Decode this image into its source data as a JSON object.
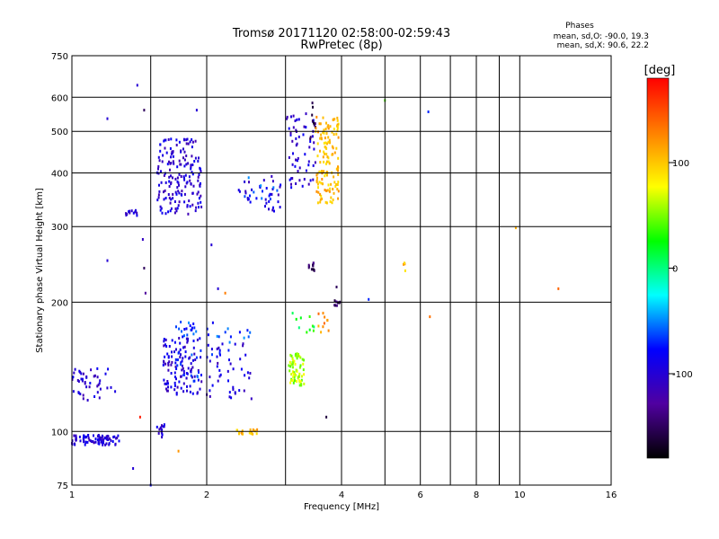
{
  "chart_data": {
    "type": "scatter",
    "title": "Tromsø 20171120 02:58:00-02:59:43",
    "subtitle": "RwPretec (8p)",
    "xlabel": "Frequency [MHz]",
    "ylabel": "Stationary phase Virtual Height [km]",
    "xscale": "log",
    "yscale": "log",
    "xlim": [
      1,
      16
    ],
    "ylim": [
      75,
      750
    ],
    "xticks": [
      1,
      2,
      4,
      6,
      8,
      10,
      16
    ],
    "xtick_labels": [
      "1",
      "2",
      "4",
      "6",
      "8",
      "10",
      "16"
    ],
    "yticks": [
      75,
      100,
      200,
      300,
      400,
      500,
      600,
      750
    ],
    "ytick_labels": [
      "75",
      "100",
      "200",
      "300",
      "400",
      "500",
      "600",
      "750"
    ],
    "x_gridlines": [
      1.5,
      2,
      3,
      4,
      5,
      6,
      7,
      8,
      9,
      10
    ],
    "y_gridlines": [
      100,
      200,
      300,
      400,
      500,
      600
    ],
    "grid": true,
    "legend_title": "Phases",
    "legend_lines": [
      "mean, sd,O: -90.0, 19.3",
      "mean, sd,X:  90.6, 22.2"
    ],
    "legend_placement": "top-right",
    "colorbar": {
      "label": "[deg]",
      "range": [
        -180,
        180
      ],
      "ticks": [
        100,
        0,
        -100
      ],
      "tick_labels": [
        "100",
        "0",
        "-100"
      ],
      "colors": [
        "#ff0000",
        "#ff8000",
        "#ffff00",
        "#00ff00",
        "#00ffff",
        "#0000ff",
        "#5000a0",
        "#000000"
      ]
    },
    "series": [
      {
        "phase_deg": -100,
        "clusters": [
          {
            "fmin": 1.0,
            "fmax": 1.28,
            "hmin": 93,
            "hmax": 98,
            "n": 90
          },
          {
            "fmin": 1.0,
            "fmax": 1.25,
            "hmin": 118,
            "hmax": 140,
            "n": 45
          },
          {
            "fmin": 1.55,
            "fmax": 1.95,
            "hmin": 320,
            "hmax": 480,
            "n": 170
          },
          {
            "fmin": 1.3,
            "fmax": 1.4,
            "hmin": 318,
            "hmax": 328,
            "n": 12
          },
          {
            "fmin": 1.6,
            "fmax": 1.95,
            "hmin": 122,
            "hmax": 165,
            "n": 110
          },
          {
            "fmin": 2.0,
            "fmax": 2.55,
            "hmin": 118,
            "hmax": 160,
            "n": 45
          },
          {
            "fmin": 2.35,
            "fmax": 3.1,
            "hmin": 325,
            "hmax": 400,
            "n": 35
          },
          {
            "fmin": 3.0,
            "fmax": 3.5,
            "hmin": 360,
            "hmax": 550,
            "n": 55
          },
          {
            "fmin": 1.55,
            "fmax": 1.62,
            "hmin": 96,
            "hmax": 104,
            "n": 14
          }
        ]
      },
      {
        "phase_deg": -65,
        "clusters": [
          {
            "fmin": 1.7,
            "fmax": 1.9,
            "hmin": 165,
            "hmax": 180,
            "n": 18
          },
          {
            "fmin": 2.0,
            "fmax": 2.6,
            "hmin": 150,
            "hmax": 182,
            "n": 18
          },
          {
            "fmin": 1.7,
            "fmax": 1.95,
            "hmin": 130,
            "hmax": 155,
            "n": 20
          },
          {
            "fmin": 2.4,
            "fmax": 2.9,
            "hmin": 345,
            "hmax": 390,
            "n": 12
          }
        ]
      },
      {
        "phase_deg": -150,
        "clusters": [
          {
            "fmin": 3.38,
            "fmax": 3.48,
            "hmin": 235,
            "hmax": 250,
            "n": 12
          },
          {
            "fmin": 3.85,
            "fmax": 3.98,
            "hmin": 196,
            "hmax": 202,
            "n": 8
          },
          {
            "fmin": 3.4,
            "fmax": 3.5,
            "hmin": 480,
            "hmax": 600,
            "n": 10
          }
        ]
      },
      {
        "phase_deg": 60,
        "clusters": [
          {
            "fmin": 3.05,
            "fmax": 3.3,
            "hmin": 128,
            "hmax": 152,
            "n": 70
          }
        ]
      },
      {
        "phase_deg": 105,
        "clusters": [
          {
            "fmin": 3.5,
            "fmax": 3.95,
            "hmin": 340,
            "hmax": 540,
            "n": 130
          },
          {
            "fmin": 2.3,
            "fmax": 2.6,
            "hmin": 98,
            "hmax": 101,
            "n": 18
          },
          {
            "fmin": 5.5,
            "fmax": 5.55,
            "hmin": 236,
            "hmax": 250,
            "n": 4
          }
        ]
      },
      {
        "phase_deg": 125,
        "clusters": [
          {
            "fmin": 3.55,
            "fmax": 3.75,
            "hmin": 170,
            "hmax": 190,
            "n": 10
          }
        ]
      },
      {
        "phase_deg": 20,
        "clusters": [
          {
            "fmin": 3.1,
            "fmax": 3.5,
            "hmin": 170,
            "hmax": 190,
            "n": 10
          }
        ]
      }
    ],
    "isolated_points": [
      {
        "f": 1.4,
        "h": 640,
        "phase_deg": -100
      },
      {
        "f": 1.2,
        "h": 535,
        "phase_deg": -100
      },
      {
        "f": 1.45,
        "h": 560,
        "phase_deg": -150
      },
      {
        "f": 1.9,
        "h": 560,
        "phase_deg": -100
      },
      {
        "f": 1.2,
        "h": 250,
        "phase_deg": -100
      },
      {
        "f": 1.46,
        "h": 210,
        "phase_deg": -130
      },
      {
        "f": 1.45,
        "h": 240,
        "phase_deg": -150
      },
      {
        "f": 1.44,
        "h": 280,
        "phase_deg": -110
      },
      {
        "f": 2.05,
        "h": 272,
        "phase_deg": -100
      },
      {
        "f": 2.12,
        "h": 215,
        "phase_deg": -100
      },
      {
        "f": 4.6,
        "h": 203,
        "phase_deg": -70
      },
      {
        "f": 5.0,
        "h": 590,
        "phase_deg": 40
      },
      {
        "f": 6.25,
        "h": 555,
        "phase_deg": -70
      },
      {
        "f": 6.3,
        "h": 185,
        "phase_deg": 135
      },
      {
        "f": 9.8,
        "h": 298,
        "phase_deg": 110
      },
      {
        "f": 12.2,
        "h": 215,
        "phase_deg": 140
      },
      {
        "f": 1.42,
        "h": 108,
        "phase_deg": 170
      },
      {
        "f": 1.73,
        "h": 90,
        "phase_deg": 120
      },
      {
        "f": 1.37,
        "h": 82,
        "phase_deg": -100
      },
      {
        "f": 1.5,
        "h": 75,
        "phase_deg": -80
      },
      {
        "f": 3.7,
        "h": 108,
        "phase_deg": -160
      },
      {
        "f": 3.9,
        "h": 217,
        "phase_deg": -150
      },
      {
        "f": 2.2,
        "h": 210,
        "phase_deg": 130
      }
    ]
  }
}
